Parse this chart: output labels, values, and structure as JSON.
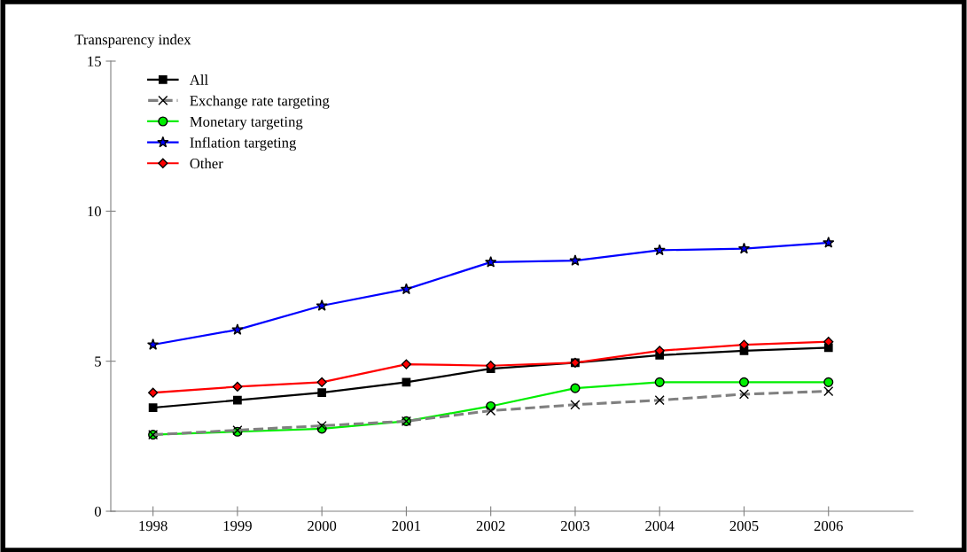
{
  "chart_data": {
    "type": "line",
    "ylabel": "Transparency index",
    "categories": [
      "1998",
      "1999",
      "2000",
      "2001",
      "2002",
      "2003",
      "2004",
      "2005",
      "2006"
    ],
    "series": [
      {
        "name": "All",
        "color": "#000000",
        "marker": "square",
        "line_style": "solid",
        "values": [
          3.45,
          3.7,
          3.95,
          4.3,
          4.75,
          4.95,
          5.2,
          5.35,
          5.45
        ]
      },
      {
        "name": "Exchange rate targeting",
        "color": "#808080",
        "marker": "cross",
        "line_style": "dashed",
        "values": [
          2.55,
          2.7,
          2.85,
          3.0,
          3.35,
          3.55,
          3.7,
          3.9,
          4.0
        ]
      },
      {
        "name": "Monetary targeting",
        "color": "#00ee00",
        "marker": "circle",
        "line_style": "solid",
        "values": [
          2.55,
          2.65,
          2.75,
          3.0,
          3.5,
          4.1,
          4.3,
          4.3,
          4.3
        ]
      },
      {
        "name": "Inflation targeting",
        "color": "#0000ff",
        "marker": "star",
        "line_style": "solid",
        "values": [
          5.55,
          6.05,
          6.85,
          7.4,
          8.3,
          8.35,
          8.7,
          8.75,
          8.95
        ]
      },
      {
        "name": "Other",
        "color": "#ff0000",
        "marker": "diamond",
        "line_style": "solid",
        "values": [
          3.95,
          4.15,
          4.3,
          4.9,
          4.85,
          4.95,
          5.35,
          5.55,
          5.65
        ]
      }
    ],
    "ylim": [
      0,
      15
    ],
    "yticks": [
      0,
      5,
      10,
      15
    ],
    "grid": false,
    "legend": "top left"
  }
}
